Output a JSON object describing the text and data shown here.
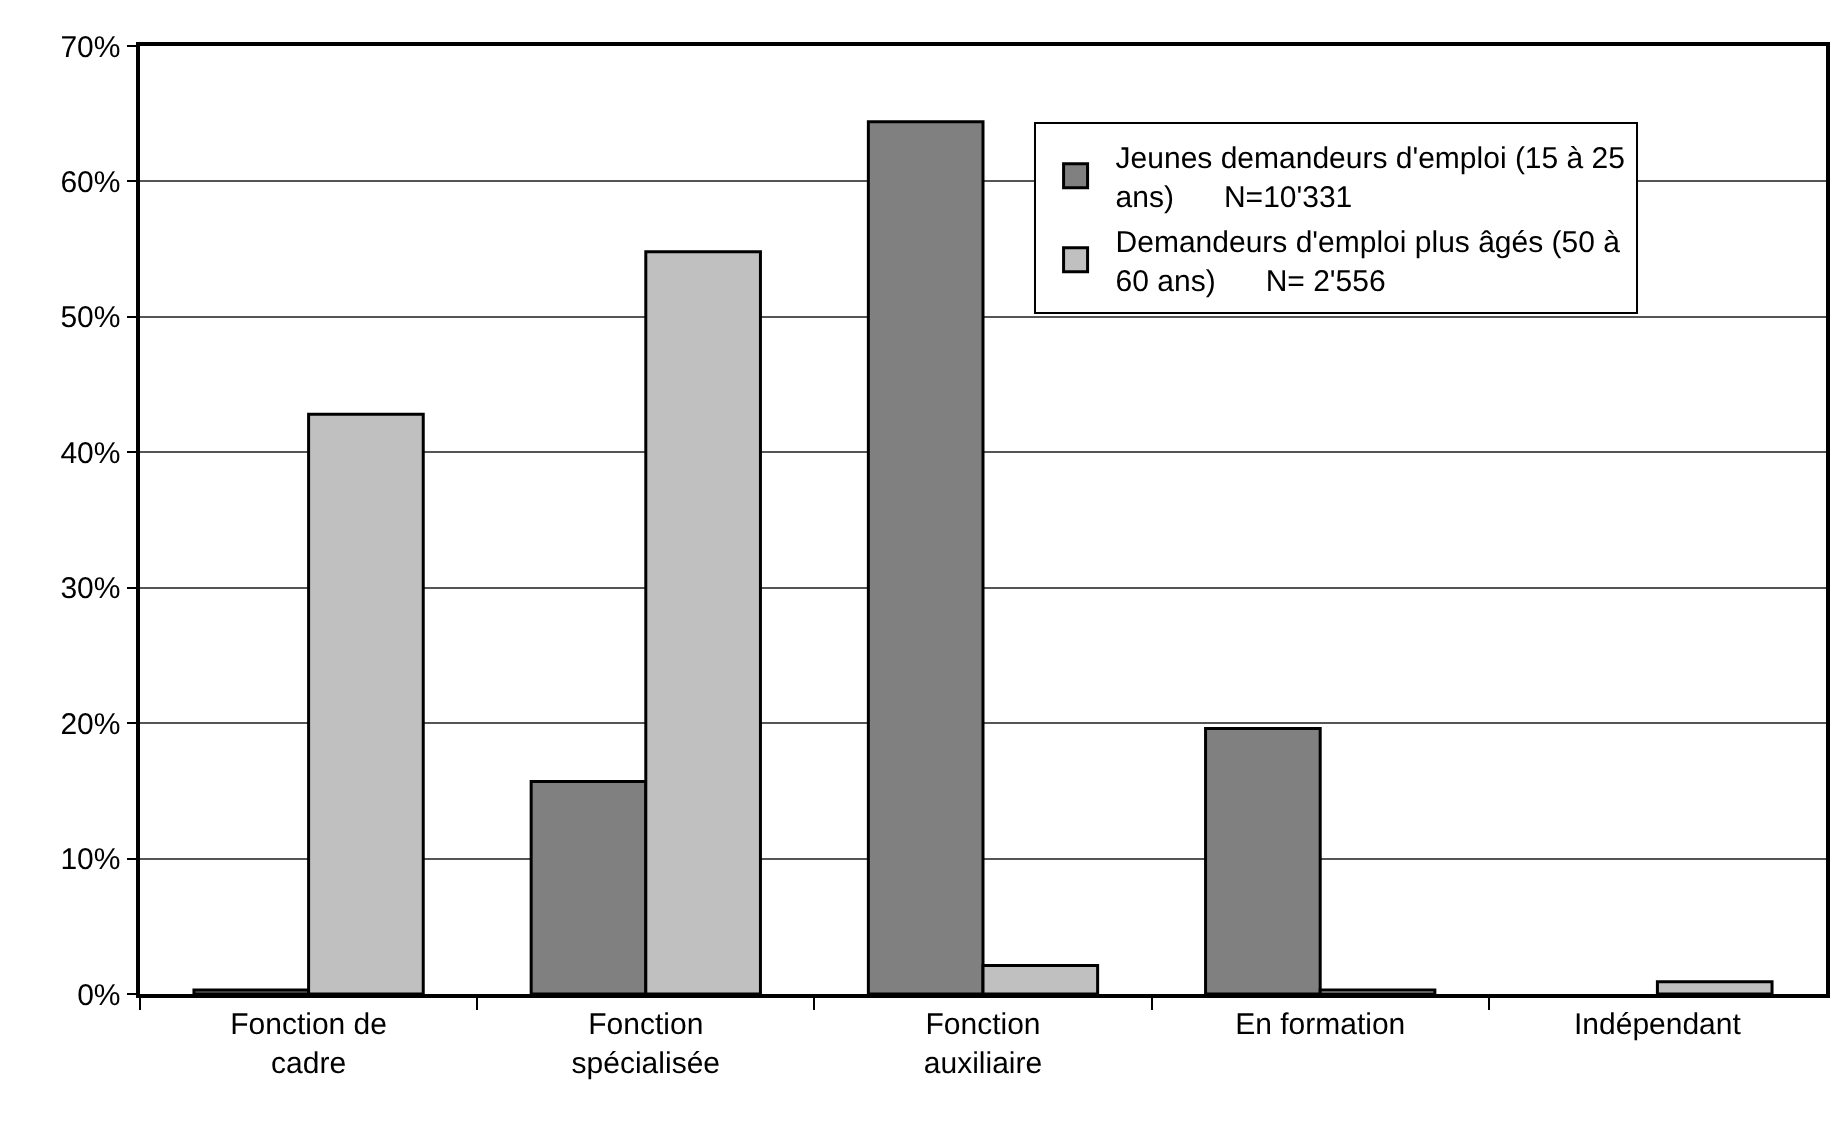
{
  "chart_data": {
    "type": "bar",
    "categories": [
      "Fonction de cadre",
      "Fonction spécialisée",
      "Fonction auxiliaire",
      "En formation",
      "Indépendant"
    ],
    "series": [
      {
        "name": "Jeunes demandeurs d'emploi (15 à 25 ans)      N=10'331",
        "color": "#808080",
        "values": [
          0.3,
          15.7,
          64.4,
          19.6,
          null
        ]
      },
      {
        "name": "Demandeurs d'emploi plus âgés (50 à 60 ans)      N= 2'556",
        "color": "#c0c0c0",
        "values": [
          42.8,
          54.8,
          2.1,
          0.3,
          0.9
        ]
      }
    ],
    "ylim": [
      0,
      70
    ],
    "yticks": [
      {
        "value": 0,
        "label": "0%"
      },
      {
        "value": 10,
        "label": "10%"
      },
      {
        "value": 20,
        "label": "20%"
      },
      {
        "value": 30,
        "label": "30%"
      },
      {
        "value": 40,
        "label": "40%"
      },
      {
        "value": 50,
        "label": "50%"
      },
      {
        "value": 60,
        "label": "60%"
      },
      {
        "value": 70,
        "label": "70%"
      }
    ],
    "grid": "y",
    "legend": "top right"
  }
}
